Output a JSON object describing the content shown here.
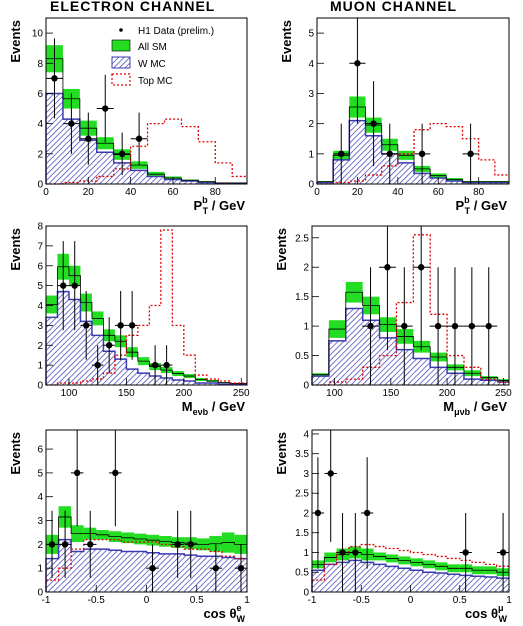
{
  "headers": {
    "left": "ELECTRON CHANNEL",
    "right": "MUON CHANNEL"
  },
  "legend": {
    "data": "H1 Data (prelim.)",
    "sm": "All SM",
    "w": "W MC",
    "top": "Top MC"
  },
  "colors": {
    "sm_band": "#22dd22",
    "w_hatch": "#3b3bb0",
    "top_line": "#e00000",
    "data": "#000000"
  },
  "chart_data": [
    {
      "id": "e_pt",
      "type": "bar",
      "ylabel": "Events",
      "xlabel": {
        "main": "P",
        "sub": "T",
        "sup": "b",
        "tail": " / GeV"
      },
      "xlim": [
        0,
        95
      ],
      "ylim": [
        0,
        11
      ],
      "xbins": [
        0,
        8,
        16,
        24,
        32,
        40,
        48,
        56,
        64,
        72,
        80,
        88,
        95
      ],
      "xticks": [
        0,
        20,
        40,
        60,
        80
      ],
      "yticks": [
        0,
        2,
        4,
        6,
        8,
        10
      ],
      "sm_lo": [
        7.4,
        5.0,
        3.2,
        2.3,
        1.6,
        1.0,
        0.5,
        0.3,
        0.2,
        0.1,
        0.05,
        0.05
      ],
      "sm_hi": [
        9.2,
        6.3,
        4.2,
        3.1,
        2.3,
        1.5,
        0.8,
        0.5,
        0.3,
        0.2,
        0.1,
        0.1
      ],
      "w": [
        6.0,
        4.3,
        2.9,
        2.1,
        1.4,
        0.9,
        0.5,
        0.3,
        0.2,
        0.1,
        0.05,
        0.05
      ],
      "top": [
        0.0,
        0.1,
        0.2,
        0.5,
        1.0,
        2.5,
        4.0,
        4.3,
        3.8,
        2.8,
        1.4,
        0.5
      ],
      "data": [
        {
          "x": 4,
          "y": 7,
          "e": 2.65
        },
        {
          "x": 12,
          "y": 4,
          "e": 2.0
        },
        {
          "x": 20,
          "y": 3,
          "e": 1.73
        },
        {
          "x": 28,
          "y": 5,
          "e": 2.24
        },
        {
          "x": 36,
          "y": 2,
          "e": 1.41
        },
        {
          "x": 44,
          "y": 3,
          "e": 1.73
        }
      ]
    },
    {
      "id": "m_pt",
      "type": "bar",
      "ylabel": "Events",
      "xlabel": {
        "main": "P",
        "sub": "T",
        "sup": "b",
        "tail": " / GeV"
      },
      "xlim": [
        0,
        95
      ],
      "ylim": [
        0,
        5.5
      ],
      "xbins": [
        0,
        8,
        16,
        24,
        32,
        40,
        48,
        56,
        64,
        72,
        80,
        88,
        95
      ],
      "xticks": [
        0,
        20,
        40,
        60,
        80
      ],
      "yticks": [
        0,
        1,
        2,
        3,
        4,
        5
      ],
      "sm_lo": [
        0.05,
        0.8,
        2.2,
        1.7,
        1.1,
        0.8,
        0.4,
        0.2,
        0.1,
        0.05,
        0.05,
        0.05
      ],
      "sm_hi": [
        0.1,
        1.1,
        2.9,
        2.2,
        1.5,
        1.1,
        0.6,
        0.35,
        0.2,
        0.1,
        0.1,
        0.1
      ],
      "w": [
        0.05,
        0.8,
        2.1,
        1.6,
        1.0,
        0.7,
        0.35,
        0.2,
        0.1,
        0.05,
        0.05,
        0.05
      ],
      "top": [
        0.0,
        0.05,
        0.1,
        0.3,
        0.6,
        1.0,
        1.8,
        2.0,
        1.9,
        1.5,
        0.8,
        0.3
      ],
      "data": [
        {
          "x": 12,
          "y": 1,
          "e": 1.0
        },
        {
          "x": 20,
          "y": 4,
          "e": 2.0
        },
        {
          "x": 28,
          "y": 2,
          "e": 1.41
        },
        {
          "x": 36,
          "y": 1,
          "e": 1.0
        },
        {
          "x": 52,
          "y": 1,
          "e": 1.0
        },
        {
          "x": 76,
          "y": 1,
          "e": 1.0
        }
      ]
    },
    {
      "id": "e_m",
      "type": "bar",
      "ylabel": "Events",
      "xlabel": {
        "main": "M",
        "sub": "eνb",
        "sup": "",
        "tail": " / GeV"
      },
      "xlim": [
        80,
        255
      ],
      "ylim": [
        0,
        8
      ],
      "xbins": [
        80,
        90,
        100,
        110,
        120,
        130,
        140,
        150,
        160,
        170,
        180,
        190,
        200,
        210,
        220,
        230,
        240,
        255
      ],
      "xticks": [
        100,
        150,
        200,
        250
      ],
      "yticks": [
        0,
        1,
        2,
        3,
        4,
        5,
        6,
        7,
        8
      ],
      "sm_lo": [
        3.6,
        5.3,
        5.0,
        3.7,
        3.0,
        2.2,
        1.9,
        1.4,
        1.0,
        0.75,
        0.6,
        0.45,
        0.35,
        0.2,
        0.15,
        0.1,
        0.05
      ],
      "sm_hi": [
        4.5,
        6.6,
        6.0,
        4.6,
        3.7,
        2.8,
        2.5,
        1.9,
        1.4,
        1.1,
        0.9,
        0.7,
        0.55,
        0.35,
        0.25,
        0.15,
        0.1
      ],
      "w": [
        3.4,
        4.7,
        4.3,
        3.2,
        2.5,
        1.7,
        1.3,
        0.8,
        0.6,
        0.45,
        0.35,
        0.25,
        0.2,
        0.1,
        0.1,
        0.05,
        0.05
      ],
      "top": [
        0.0,
        0.1,
        0.1,
        0.2,
        0.3,
        0.6,
        1.5,
        2.5,
        3.0,
        4.0,
        7.8,
        3.0,
        1.5,
        0.5,
        0.3,
        0.2,
        0.1
      ],
      "data": [
        {
          "x": 95,
          "y": 5,
          "e": 2.24
        },
        {
          "x": 105,
          "y": 5,
          "e": 2.24
        },
        {
          "x": 115,
          "y": 3,
          "e": 1.73
        },
        {
          "x": 125,
          "y": 1,
          "e": 1.0
        },
        {
          "x": 135,
          "y": 2,
          "e": 1.41
        },
        {
          "x": 145,
          "y": 3,
          "e": 1.73
        },
        {
          "x": 155,
          "y": 3,
          "e": 1.73
        },
        {
          "x": 175,
          "y": 1,
          "e": 1.0
        },
        {
          "x": 185,
          "y": 1,
          "e": 1.0
        }
      ]
    },
    {
      "id": "m_m",
      "type": "bar",
      "ylabel": "Events",
      "xlabel": {
        "main": "M",
        "sub": "μνb",
        "sup": "",
        "tail": " / GeV"
      },
      "xlim": [
        80,
        255
      ],
      "ylim": [
        0,
        2.7
      ],
      "xbins": [
        80,
        95,
        110,
        125,
        140,
        155,
        170,
        185,
        200,
        215,
        230,
        245,
        255
      ],
      "xticks": [
        100,
        150,
        200,
        250
      ],
      "yticks": [
        0,
        0.5,
        1,
        1.5,
        2,
        2.5
      ],
      "sm_lo": [
        0.15,
        0.8,
        1.4,
        1.2,
        0.9,
        0.7,
        0.55,
        0.4,
        0.25,
        0.15,
        0.1,
        0.05
      ],
      "sm_hi": [
        0.2,
        1.1,
        1.75,
        1.5,
        1.15,
        0.95,
        0.75,
        0.55,
        0.35,
        0.25,
        0.15,
        0.1
      ],
      "w": [
        0.15,
        0.75,
        1.3,
        1.1,
        0.8,
        0.6,
        0.45,
        0.3,
        0.2,
        0.1,
        0.08,
        0.05
      ],
      "top": [
        0.0,
        0.05,
        0.1,
        0.3,
        0.5,
        1.4,
        2.55,
        1.2,
        0.5,
        0.3,
        0.1,
        0.05
      ],
      "data": [
        {
          "x": 132,
          "y": 1,
          "e": 1.0
        },
        {
          "x": 147,
          "y": 2,
          "e": 1.41
        },
        {
          "x": 162,
          "y": 1,
          "e": 1.0
        },
        {
          "x": 177,
          "y": 2,
          "e": 1.41
        },
        {
          "x": 192,
          "y": 1,
          "e": 1.0
        },
        {
          "x": 207,
          "y": 1,
          "e": 1.0
        },
        {
          "x": 222,
          "y": 1,
          "e": 1.0
        },
        {
          "x": 237,
          "y": 1,
          "e": 1.0
        }
      ]
    },
    {
      "id": "e_cos",
      "type": "bar",
      "ylabel": "Events",
      "xlabel": {
        "main": "cos θ",
        "sub": "W",
        "sup": "e",
        "tail": ""
      },
      "xlim": [
        -1,
        1
      ],
      "ylim": [
        0,
        6.8
      ],
      "xbins": [
        -1,
        -0.875,
        -0.75,
        -0.625,
        -0.5,
        -0.375,
        -0.25,
        -0.125,
        0,
        0.125,
        0.25,
        0.375,
        0.5,
        0.625,
        0.75,
        0.875,
        1
      ],
      "xticks": [
        -1,
        -0.5,
        0,
        0.5,
        1
      ],
      "yticks": [
        0,
        1,
        2,
        3,
        4,
        5,
        6
      ],
      "sm_lo": [
        1.6,
        2.7,
        2.1,
        2.2,
        2.2,
        2.1,
        2.05,
        2.0,
        1.95,
        1.9,
        1.85,
        1.8,
        1.75,
        1.7,
        1.65,
        1.6
      ],
      "sm_hi": [
        2.4,
        3.6,
        2.8,
        2.7,
        2.6,
        2.55,
        2.5,
        2.45,
        2.4,
        2.35,
        2.3,
        2.3,
        2.25,
        2.35,
        2.5,
        2.4
      ],
      "w": [
        1.4,
        2.2,
        1.7,
        1.8,
        1.8,
        1.75,
        1.7,
        1.7,
        1.65,
        1.6,
        1.6,
        1.55,
        1.5,
        1.5,
        1.45,
        1.4
      ],
      "top": [
        0.5,
        1.0,
        1.8,
        2.2,
        2.2,
        2.2,
        2.1,
        2.1,
        2.1,
        2.0,
        1.9,
        1.8,
        1.8,
        1.7,
        1.5,
        1.4
      ],
      "data": [
        {
          "x": -0.94,
          "y": 2,
          "e": 1.41
        },
        {
          "x": -0.81,
          "y": 2,
          "e": 1.41
        },
        {
          "x": -0.69,
          "y": 5,
          "e": 2.24
        },
        {
          "x": -0.56,
          "y": 2,
          "e": 1.41
        },
        {
          "x": -0.31,
          "y": 5,
          "e": 2.24
        },
        {
          "x": 0.06,
          "y": 1,
          "e": 1.0
        },
        {
          "x": 0.31,
          "y": 2,
          "e": 1.41
        },
        {
          "x": 0.44,
          "y": 2,
          "e": 1.41
        },
        {
          "x": 0.69,
          "y": 1,
          "e": 1.0
        },
        {
          "x": 0.94,
          "y": 1,
          "e": 1.0
        }
      ]
    },
    {
      "id": "m_cos",
      "type": "bar",
      "ylabel": "Events",
      "xlabel": {
        "main": "cos θ",
        "sub": "W",
        "sup": "μ",
        "tail": ""
      },
      "xlim": [
        -1,
        1
      ],
      "ylim": [
        0,
        4.1
      ],
      "xbins": [
        -1,
        -0.875,
        -0.75,
        -0.625,
        -0.5,
        -0.375,
        -0.25,
        -0.125,
        0,
        0.125,
        0.25,
        0.375,
        0.5,
        0.625,
        0.75,
        0.875,
        1
      ],
      "xticks": [
        -1,
        -0.5,
        0,
        0.5,
        1
      ],
      "yticks": [
        0,
        0.5,
        1,
        1.5,
        2,
        2.5,
        3,
        3.5,
        4
      ],
      "sm_lo": [
        0.6,
        0.75,
        0.8,
        0.85,
        0.8,
        0.8,
        0.75,
        0.7,
        0.65,
        0.6,
        0.55,
        0.5,
        0.5,
        0.45,
        0.45,
        0.4
      ],
      "sm_hi": [
        0.8,
        1.0,
        1.1,
        1.15,
        1.1,
        1.0,
        0.95,
        0.9,
        0.85,
        0.8,
        0.75,
        0.7,
        0.7,
        0.65,
        0.65,
        0.6
      ],
      "w": [
        0.55,
        0.7,
        0.75,
        0.8,
        0.75,
        0.7,
        0.65,
        0.6,
        0.55,
        0.5,
        0.48,
        0.45,
        0.42,
        0.4,
        0.38,
        0.35
      ],
      "top": [
        0.3,
        0.7,
        1.0,
        1.15,
        1.2,
        1.15,
        1.1,
        1.05,
        1.0,
        0.95,
        0.9,
        0.85,
        0.8,
        0.75,
        0.7,
        0.65
      ],
      "data": [
        {
          "x": -0.94,
          "y": 2,
          "e": 1.41
        },
        {
          "x": -0.81,
          "y": 3,
          "e": 1.73
        },
        {
          "x": -0.69,
          "y": 1,
          "e": 1.0
        },
        {
          "x": -0.56,
          "y": 1,
          "e": 1.0
        },
        {
          "x": -0.44,
          "y": 2,
          "e": 1.41
        },
        {
          "x": 0.56,
          "y": 1,
          "e": 1.0
        },
        {
          "x": 0.94,
          "y": 1,
          "e": 1.0
        }
      ]
    }
  ]
}
